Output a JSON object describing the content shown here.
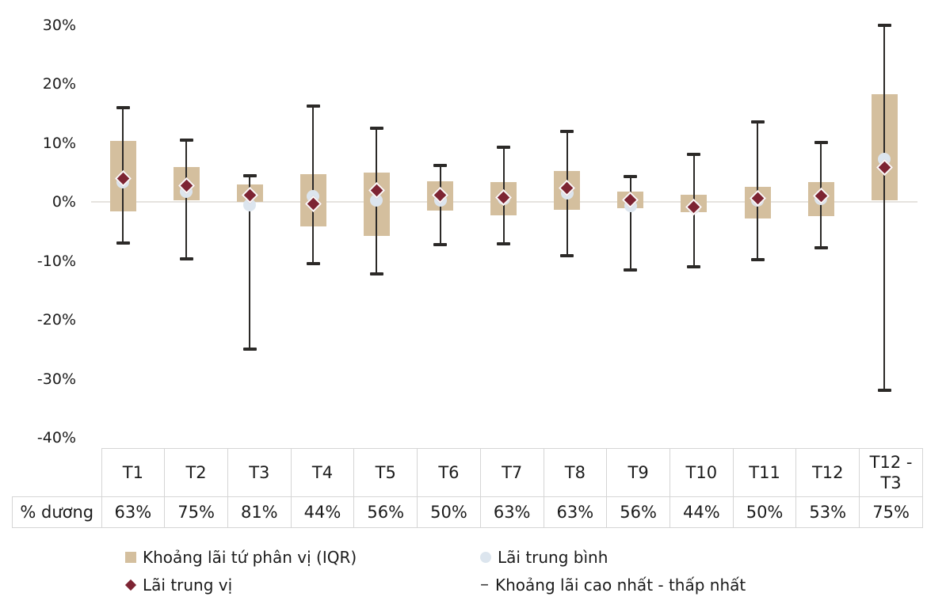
{
  "chart_data": {
    "type": "box",
    "title": "",
    "xlabel": "",
    "ylabel": "",
    "units": "%",
    "ylim": [
      -40,
      30
    ],
    "grid": "zero-baseline-only",
    "y_tick_labels": [
      "30%",
      "20%",
      "10%",
      "0%",
      "-10%",
      "-20%",
      "-30%",
      "-40%"
    ],
    "y_tick_values": [
      30,
      20,
      10,
      0,
      -10,
      -20,
      -30,
      -40
    ],
    "categories": [
      "T1",
      "T2",
      "T3",
      "T4",
      "T5",
      "T6",
      "T7",
      "T8",
      "T9",
      "T10",
      "T11",
      "T12",
      "T12 - T3"
    ],
    "series": {
      "high": [
        16.0,
        10.5,
        4.4,
        16.2,
        12.5,
        6.2,
        9.2,
        11.9,
        4.3,
        8.0,
        13.6,
        10.1,
        30.0
      ],
      "q3": [
        10.3,
        5.9,
        2.9,
        4.7,
        5.0,
        3.5,
        3.4,
        5.2,
        1.8,
        1.2,
        2.6,
        3.4,
        18.3
      ],
      "median": [
        3.9,
        2.7,
        1.2,
        -0.3,
        1.9,
        1.2,
        0.8,
        2.3,
        0.3,
        -0.9,
        0.6,
        1.0,
        5.9
      ],
      "mean": [
        3.3,
        1.8,
        -0.6,
        0.9,
        0.3,
        0.3,
        0.5,
        1.5,
        -0.7,
        -0.9,
        0.3,
        0.6,
        7.3
      ],
      "q1": [
        -1.7,
        0.2,
        0.0,
        -4.1,
        -5.8,
        -1.4,
        -2.3,
        -1.4,
        -1.0,
        -1.7,
        -2.8,
        -2.4,
        0.3
      ],
      "low": [
        -7.0,
        -9.7,
        -25.0,
        -10.5,
        -12.2,
        -7.3,
        -7.1,
        -9.1,
        -11.6,
        -11.0,
        -9.8,
        -7.8,
        -32.0
      ]
    },
    "table": {
      "corner_label": "",
      "row_label": "% dương",
      "values": [
        "63%",
        "75%",
        "81%",
        "44%",
        "56%",
        "50%",
        "63%",
        "63%",
        "56%",
        "44%",
        "50%",
        "53%",
        "75%"
      ]
    },
    "legend": [
      {
        "label": "Khoảng lãi tứ phân vị (IQR)",
        "marker": "square",
        "color": "#d4bf9e"
      },
      {
        "label": "Lãi trung bình",
        "marker": "circle",
        "color": "#dce5ee"
      },
      {
        "label": "Lãi trung vị",
        "marker": "diamond",
        "color": "#7d2433"
      },
      {
        "label": "Khoảng lãi cao nhất - thấp nhất",
        "marker": "dash",
        "color": "#3a3a3a"
      }
    ],
    "colors": {
      "iqr_box": "#d4bf9e",
      "median_diamond": "#7d2433",
      "mean_dot": "#dce5ee",
      "whisker": "#2b2927",
      "gridline": "#e6e3df",
      "table_border": "#d5d5d5",
      "text": "#1b1b1b"
    }
  }
}
